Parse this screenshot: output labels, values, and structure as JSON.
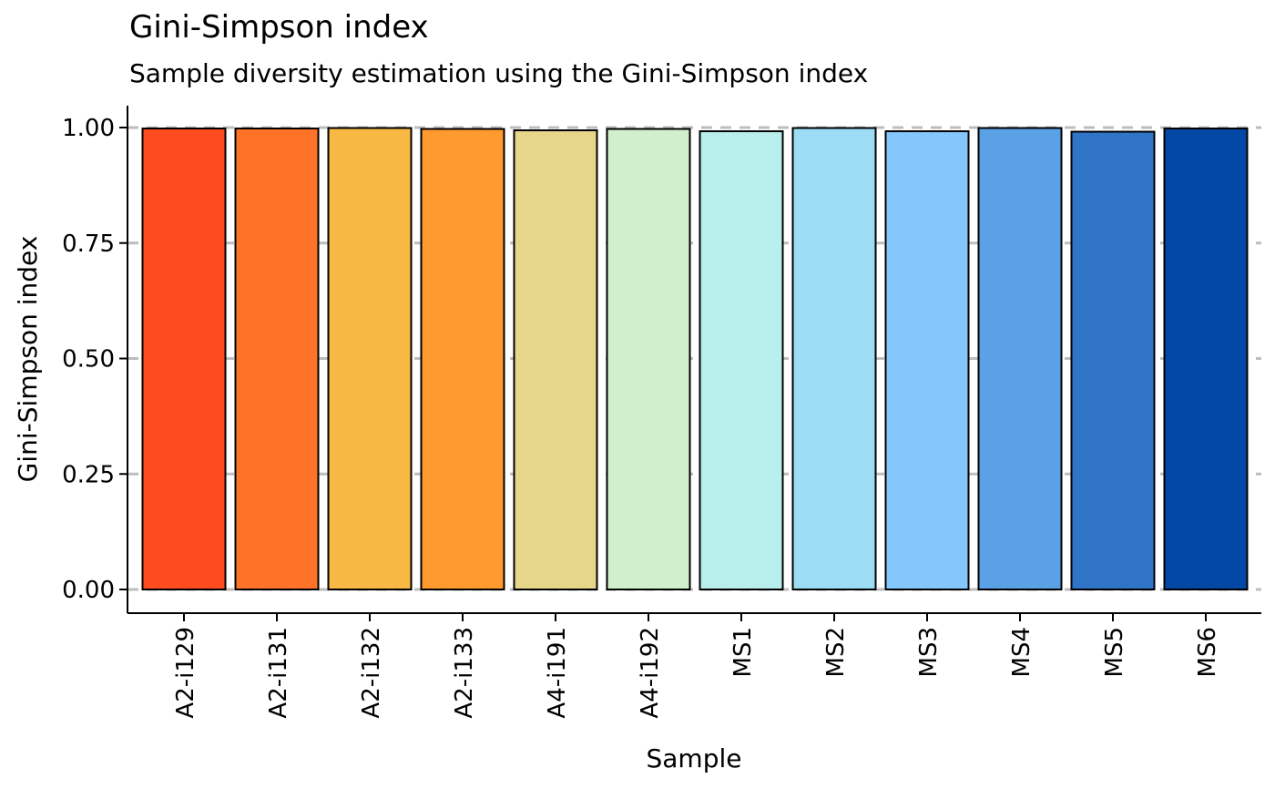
{
  "chart_data": {
    "type": "bar",
    "title": "Gini-Simpson index",
    "subtitle": "Sample diversity estimation using the Gini-Simpson index",
    "xlabel": "Sample",
    "ylabel": "Gini-Simpson index",
    "ylim": [
      0,
      1
    ],
    "yticks": [
      "0.00",
      "0.25",
      "0.50",
      "0.75",
      "1.00"
    ],
    "ytick_values": [
      0,
      0.25,
      0.5,
      0.75,
      1.0
    ],
    "grid": "horizontal dashed",
    "legend": "none",
    "categories": [
      "A2-i129",
      "A2-i131",
      "A2-i132",
      "A2-i133",
      "A4-i191",
      "A4-i192",
      "MS1",
      "MS2",
      "MS3",
      "MS4",
      "MS5",
      "MS6"
    ],
    "values": [
      0.998,
      0.998,
      0.999,
      0.997,
      0.994,
      0.997,
      0.992,
      0.999,
      0.992,
      0.999,
      0.991,
      0.998
    ],
    "colors": [
      "#FF4B20",
      "#FF7328",
      "#F8B944",
      "#FF9A2E",
      "#E6D68A",
      "#D2EFCD",
      "#B8EFEC",
      "#9CDDF5",
      "#83C7FD",
      "#5AA2E5",
      "#2F74C6",
      "#0448A5"
    ]
  }
}
